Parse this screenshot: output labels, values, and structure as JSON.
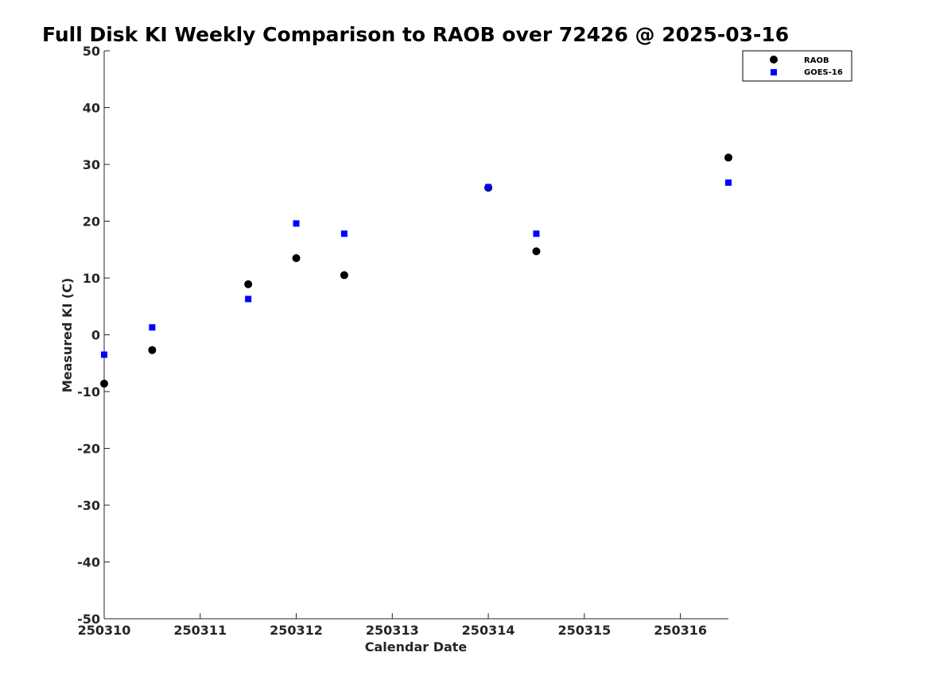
{
  "chart_data": {
    "type": "scatter",
    "title": "Full Disk KI Weekly Comparison to RAOB over 72426 @ 2025-03-16",
    "xlabel": "Calendar Date",
    "ylabel": "Measured KI (C)",
    "xlim": [
      250310,
      250316.5
    ],
    "ylim": [
      -50,
      50
    ],
    "xticks": [
      {
        "value": 250310,
        "label": "250310"
      },
      {
        "value": 250311,
        "label": "250311"
      },
      {
        "value": 250312,
        "label": "250312"
      },
      {
        "value": 250313,
        "label": "250313"
      },
      {
        "value": 250314,
        "label": "250314"
      },
      {
        "value": 250315,
        "label": "250315"
      },
      {
        "value": 250316,
        "label": "250316"
      }
    ],
    "yticks": [
      {
        "value": 50,
        "label": "50"
      },
      {
        "value": 40,
        "label": "40"
      },
      {
        "value": 30,
        "label": "30"
      },
      {
        "value": 20,
        "label": "20"
      },
      {
        "value": 10,
        "label": "10"
      },
      {
        "value": 0,
        "label": "0"
      },
      {
        "value": -10,
        "label": "-10"
      },
      {
        "value": -20,
        "label": "-20"
      },
      {
        "value": -30,
        "label": "-30"
      },
      {
        "value": -40,
        "label": "-40"
      },
      {
        "value": -50,
        "label": "-50"
      }
    ],
    "grid": false,
    "legend_position": "top-right",
    "series": [
      {
        "name": "RAOB",
        "marker": "circle",
        "color": "#000000",
        "points": [
          {
            "x": 250310.0,
            "y": -8.6
          },
          {
            "x": 250310.5,
            "y": -2.7
          },
          {
            "x": 250311.5,
            "y": 8.9
          },
          {
            "x": 250312.0,
            "y": 13.5
          },
          {
            "x": 250312.5,
            "y": 10.5
          },
          {
            "x": 250314.0,
            "y": 25.9
          },
          {
            "x": 250314.5,
            "y": 14.7
          },
          {
            "x": 250316.5,
            "y": 31.2
          }
        ]
      },
      {
        "name": "GOES-16",
        "marker": "square",
        "color": "#0000ff",
        "points": [
          {
            "x": 250310.0,
            "y": -3.5
          },
          {
            "x": 250310.5,
            "y": 1.3
          },
          {
            "x": 250311.5,
            "y": 6.3
          },
          {
            "x": 250312.0,
            "y": 19.6
          },
          {
            "x": 250312.5,
            "y": 17.8
          },
          {
            "x": 250314.0,
            "y": 26.0
          },
          {
            "x": 250314.5,
            "y": 17.8
          },
          {
            "x": 250316.5,
            "y": 26.8
          }
        ]
      }
    ]
  }
}
